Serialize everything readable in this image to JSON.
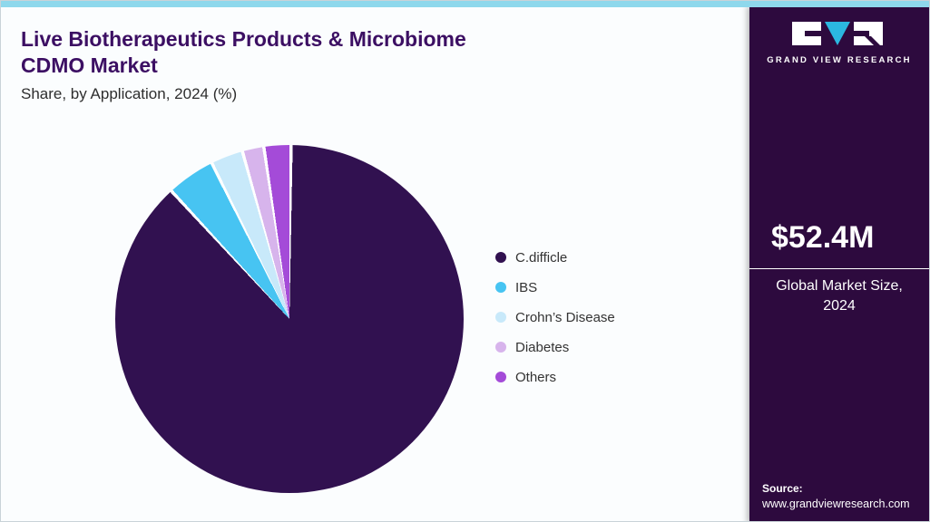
{
  "header": {
    "title_line1": "Live Biotherapeutics Products & Microbiome",
    "title_line2": "CDMO Market",
    "subtitle": "Share, by Application, 2024 (%)"
  },
  "chart_data": {
    "type": "pie",
    "title": "Live Biotherapeutics Products & Microbiome CDMO Market Share, by Application, 2024 (%)",
    "labels": [
      "C.difficle",
      "IBS",
      "Crohn’s Disease",
      "Diabetes",
      "Others"
    ],
    "values": [
      88,
      4.5,
      3,
      2,
      2.5
    ],
    "colors": [
      "#311150",
      "#47c4f2",
      "#c8e9fa",
      "#d7b4ec",
      "#a44bd8"
    ],
    "legend_position": "right",
    "start_angle_deg": 0,
    "direction": "clockwise"
  },
  "sidebar": {
    "logo_text": "GRAND VIEW RESEARCH",
    "market_size_value": "$52.4M",
    "market_size_label_line1": "Global Market Size,",
    "market_size_label_line2": "2024",
    "source_label": "Source:",
    "source_url": "www.grandviewresearch.com"
  },
  "colors": {
    "accent_bar": "#8ed8ec",
    "sidebar_bg": "#2d0a3e",
    "title_text": "#3c0f63",
    "logo_triangle": "#2bb7e0"
  }
}
